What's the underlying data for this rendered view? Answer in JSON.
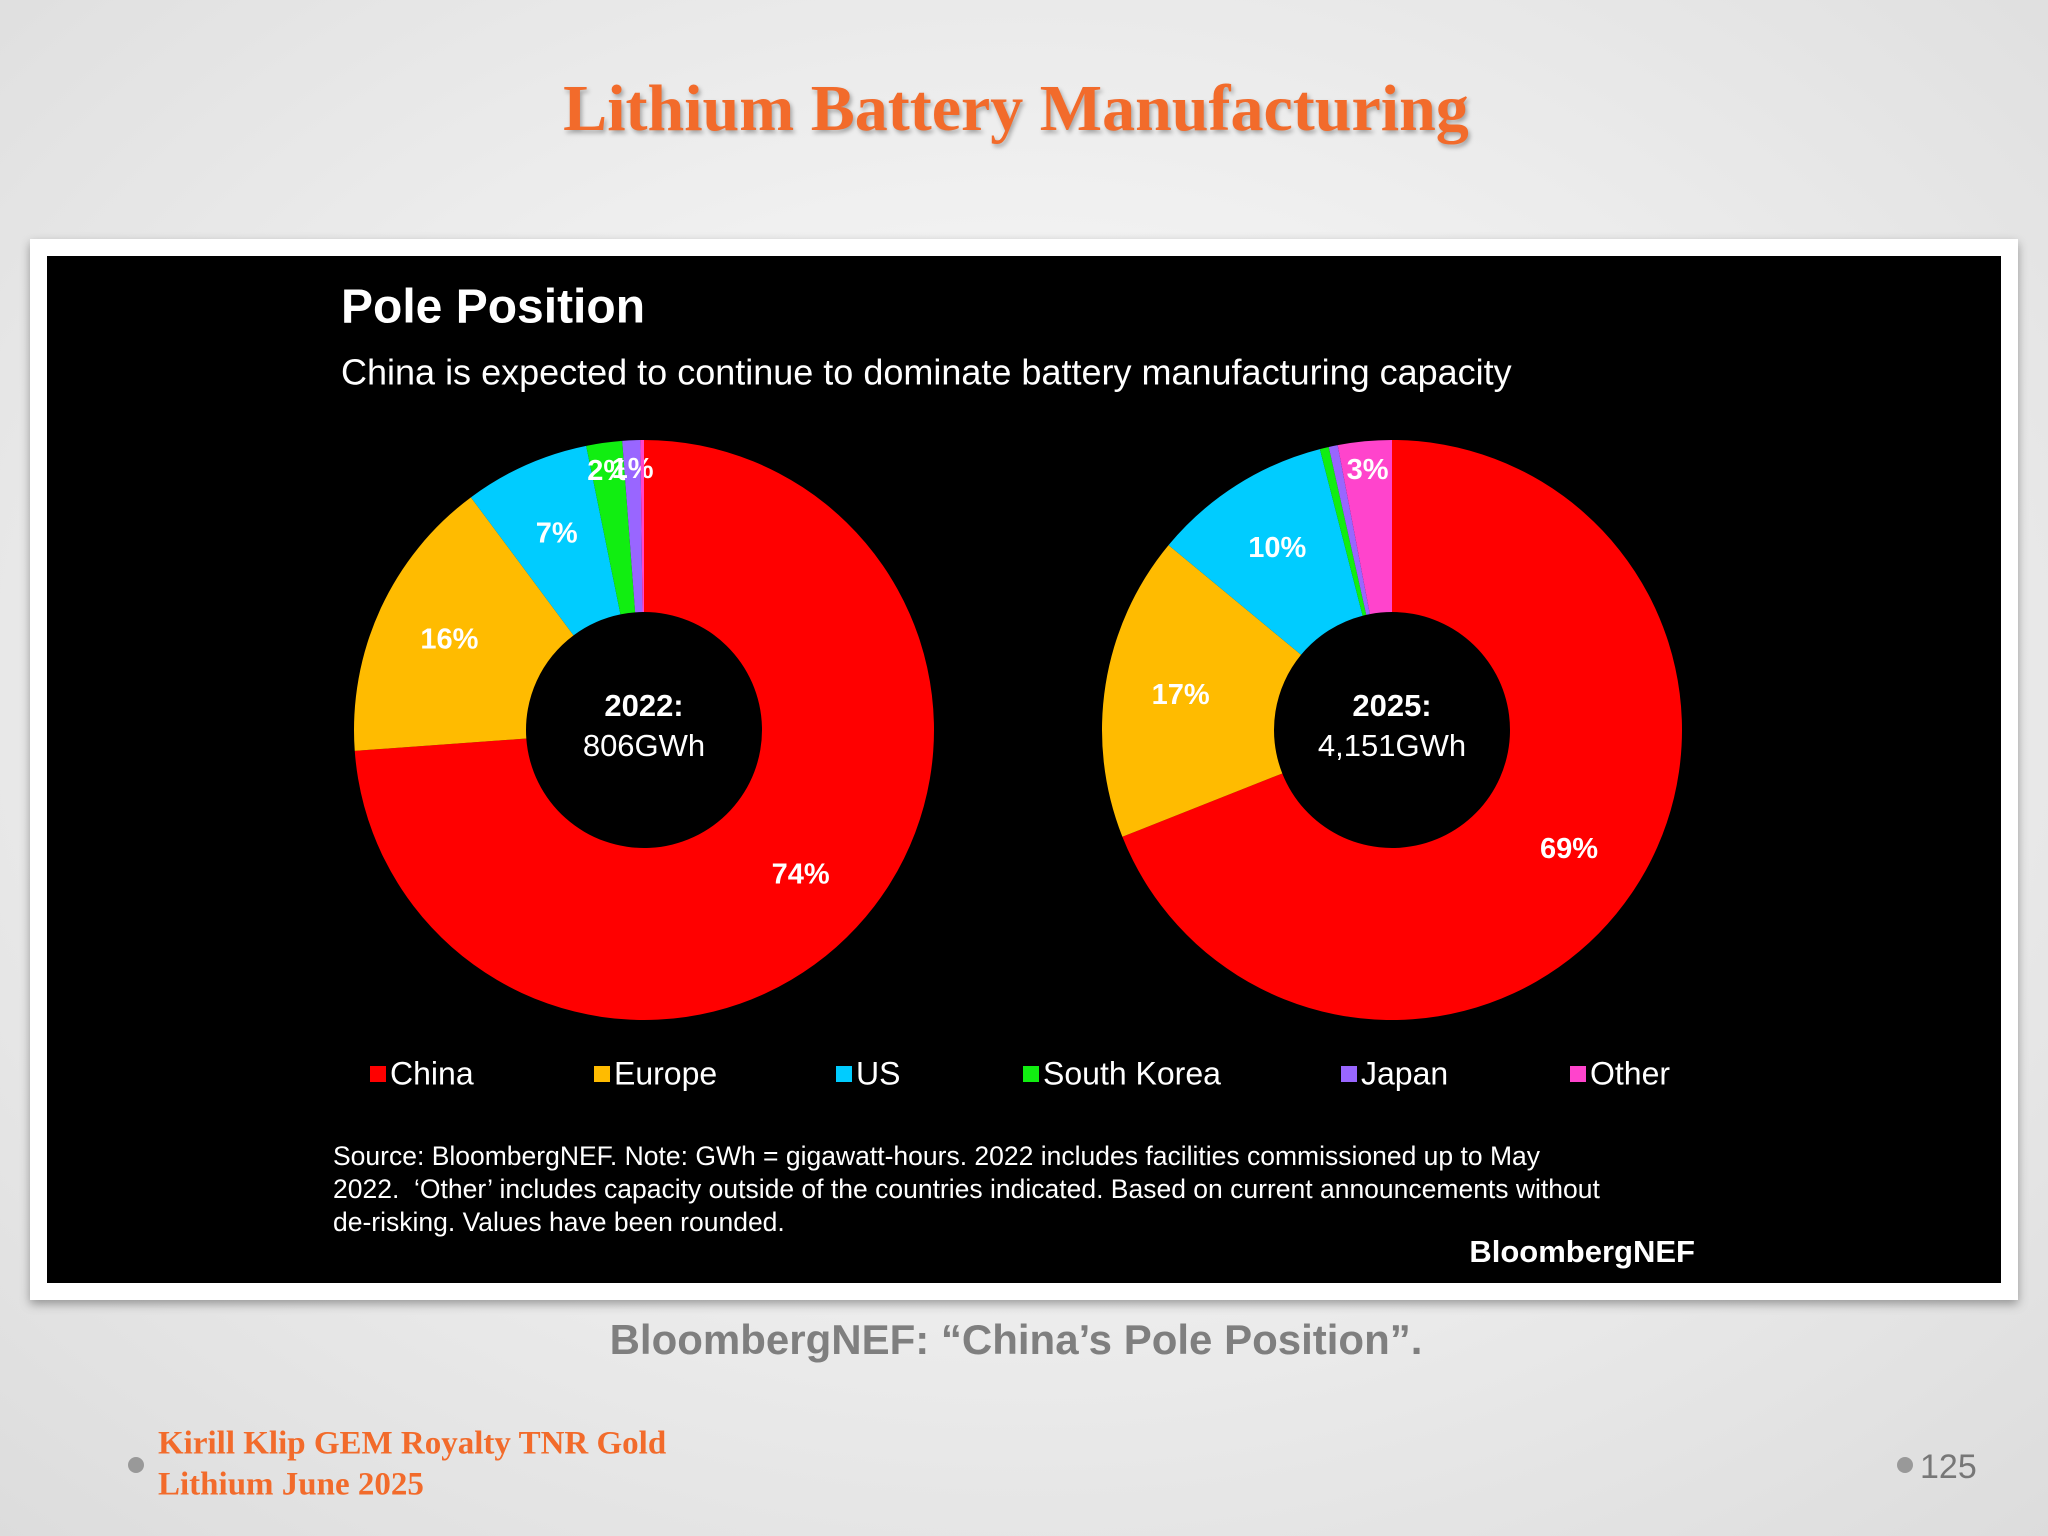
{
  "slide_title": "Lithium Battery Manufacturing",
  "chart_title": "Pole Position",
  "chart_subtitle": "China is expected to continue to dominate battery manufacturing capacity",
  "legend": {
    "categories": [
      "China",
      "Europe",
      "US",
      "South Korea",
      "Japan",
      "Other"
    ],
    "colors": [
      "#ff0000",
      "#ffbb00",
      "#00ccff",
      "#11ee11",
      "#9966ff",
      "#ff44cc"
    ]
  },
  "chart_data": [
    {
      "type": "pie",
      "hole": true,
      "center_label": [
        "2022:",
        "806GWh"
      ],
      "values": [
        74,
        16,
        7,
        2,
        1,
        0.2
      ],
      "value_labels": [
        "74%",
        "16%",
        "7%",
        "2%",
        "1%",
        null
      ]
    },
    {
      "type": "pie",
      "hole": true,
      "center_label": [
        "2025:",
        "4,151GWh"
      ],
      "values": [
        69,
        17,
        10,
        0.5,
        0.5,
        3
      ],
      "value_labels": [
        "69%",
        "17%",
        "10%",
        null,
        null,
        "3%"
      ]
    }
  ],
  "source": [
    "Source: BloombergNEF. Note: GWh = gigawatt-hours. 2022 includes facilities commissioned up to May",
    "2022.  ‘Other’ includes capacity outside of the countries indicated. Based on current announcements without",
    "de-risking. Values have been rounded."
  ],
  "logo": "BloombergNEF",
  "caption": "BloombergNEF: “China’s Pole Position”.",
  "footer": [
    "Kirill Klip GEM Royalty TNR Gold",
    "Lithium June 2025"
  ],
  "page_number": "125"
}
